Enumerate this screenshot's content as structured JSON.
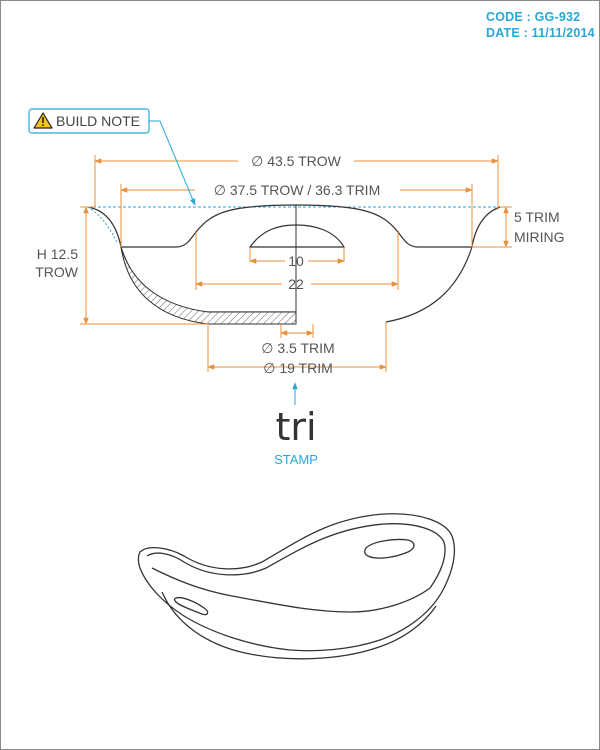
{
  "header": {
    "code_line": "CODE : GG-932",
    "date_line": "DATE : 11/11/2014"
  },
  "callout": {
    "label": "BUILD NOTE",
    "icon": "warning-icon"
  },
  "dimensions": {
    "outer_diameter": "∅ 43.5 TROW",
    "rim_diameter": "∅ 37.5 TROW / 36.3 TRIM",
    "rim_height_line1": "5 TRIM",
    "rim_height_line2": "MIRING",
    "height_line1": "H 12.5",
    "height_line2": "TROW",
    "inner_small": "10",
    "inner_large": "22",
    "wall": "∅ 3.5 TRIM",
    "foot": "∅ 19 TRIM"
  },
  "stamp": {
    "logo_text": "tri",
    "label": "STAMP"
  },
  "colors": {
    "dimension": "#E8913A",
    "accent": "#2AA6D9",
    "outline": "#333333"
  }
}
